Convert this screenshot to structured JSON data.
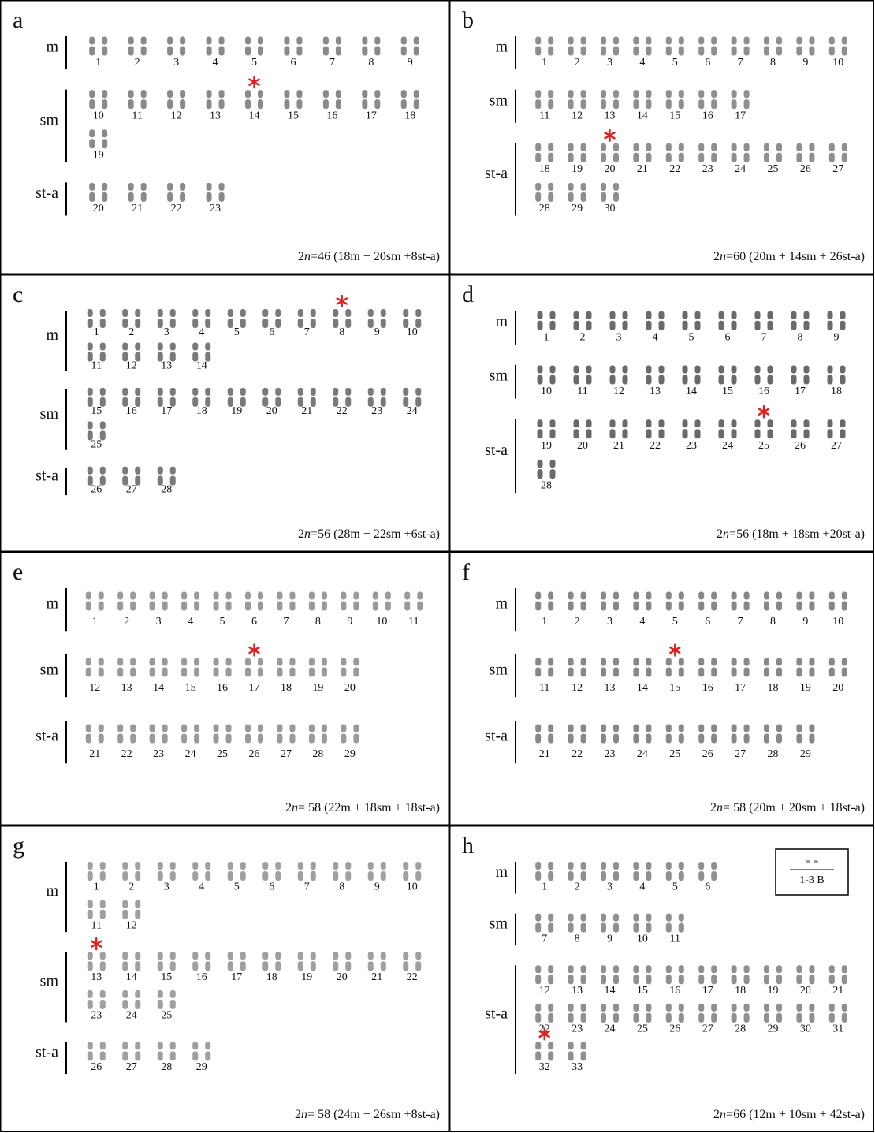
{
  "panels": [
    {
      "letter": "a",
      "groups": [
        {
          "label": "m",
          "lines": [
            [
              1,
              2,
              3,
              4,
              5,
              6,
              7,
              8,
              9
            ]
          ]
        },
        {
          "label": "sm",
          "lines": [
            [
              10,
              11,
              12,
              13,
              14,
              15,
              16,
              17,
              18
            ],
            [
              19
            ]
          ]
        },
        {
          "label": "st-a",
          "lines": [
            [
              20,
              21,
              22,
              23
            ]
          ]
        }
      ],
      "formula": {
        "prefix": "2",
        "italic": "n",
        "rest": "=46  (18m + 20sm +8st-a)"
      }
    },
    {
      "letter": "b",
      "groups": [
        {
          "label": "m",
          "lines": [
            [
              1,
              2,
              3,
              4,
              5,
              6,
              7,
              8,
              9,
              10
            ]
          ]
        },
        {
          "label": "sm",
          "lines": [
            [
              11,
              12,
              13,
              14,
              15,
              16,
              17
            ]
          ]
        },
        {
          "label": "st-a",
          "lines": [
            [
              18,
              19,
              20,
              21,
              22,
              23,
              24,
              25,
              26,
              27
            ],
            [
              28,
              29,
              30
            ]
          ]
        }
      ],
      "formula": {
        "prefix": "2",
        "italic": "n",
        "rest": "=60 (20m + 14sm + 26st-a)"
      }
    },
    {
      "letter": "c",
      "groups": [
        {
          "label": "m",
          "lines": [
            [
              1,
              2,
              3,
              4,
              5,
              6,
              7,
              8,
              9,
              10
            ],
            [
              11,
              12,
              13,
              14
            ]
          ]
        },
        {
          "label": "sm",
          "lines": [
            [
              15,
              16,
              17,
              18,
              19,
              20,
              21,
              22,
              23,
              24
            ],
            [
              25
            ]
          ]
        },
        {
          "label": "st-a",
          "lines": [
            [
              26,
              27,
              28
            ]
          ]
        }
      ],
      "formula": {
        "prefix": "2",
        "italic": "n",
        "rest": "=56  (28m + 22sm +6st-a)"
      }
    },
    {
      "letter": "d",
      "groups": [
        {
          "label": "m",
          "lines": [
            [
              1,
              2,
              3,
              4,
              5,
              6,
              7,
              8,
              9
            ]
          ]
        },
        {
          "label": "sm",
          "lines": [
            [
              10,
              11,
              12,
              13,
              14,
              15,
              16,
              17,
              18
            ]
          ]
        },
        {
          "label": "st-a",
          "lines": [
            [
              19,
              20,
              21,
              22,
              23,
              24,
              25,
              26,
              27
            ],
            [
              28
            ]
          ]
        }
      ],
      "formula": {
        "prefix": "2",
        "italic": "n",
        "rest": "=56 (18m + 18sm +20st-a)"
      }
    },
    {
      "letter": "e",
      "groups": [
        {
          "label": "m",
          "lines": [
            [
              1,
              2,
              3,
              4,
              5,
              6,
              7,
              8,
              9,
              10,
              11
            ]
          ]
        },
        {
          "label": "sm",
          "lines": [
            [
              12,
              13,
              14,
              15,
              16,
              17,
              18,
              19,
              20
            ]
          ]
        },
        {
          "label": "st-a",
          "lines": [
            [
              21,
              22,
              23,
              24,
              25,
              26,
              27,
              28,
              29
            ]
          ]
        }
      ],
      "formula": {
        "prefix": "2",
        "italic": "n",
        "rest": "= 58 (22m + 18sm + 18st-a)"
      }
    },
    {
      "letter": "f",
      "groups": [
        {
          "label": "m",
          "lines": [
            [
              1,
              2,
              3,
              4,
              5,
              6,
              7,
              8,
              9,
              10
            ]
          ]
        },
        {
          "label": "sm",
          "lines": [
            [
              11,
              12,
              13,
              14,
              15,
              16,
              17,
              18,
              19,
              20
            ]
          ]
        },
        {
          "label": "st-a",
          "lines": [
            [
              21,
              22,
              23,
              24,
              25,
              26,
              27,
              28,
              29
            ]
          ]
        }
      ],
      "formula": {
        "prefix": "2",
        "italic": "n",
        "rest": "= 58 (20m + 20sm + 18st-a)"
      }
    },
    {
      "letter": "g",
      "groups": [
        {
          "label": "m",
          "lines": [
            [
              1,
              2,
              3,
              4,
              5,
              6,
              7,
              8,
              9,
              10
            ],
            [
              11,
              12
            ]
          ]
        },
        {
          "label": "sm",
          "lines": [
            [
              13,
              14,
              15,
              16,
              17,
              18,
              19,
              20,
              21,
              22
            ],
            [
              23,
              24,
              25
            ]
          ]
        },
        {
          "label": "st-a",
          "lines": [
            [
              26,
              27,
              28,
              29
            ]
          ]
        }
      ],
      "formula": {
        "prefix": "2",
        "italic": "n",
        "rest": "= 58 (24m + 26sm +8st-a)"
      }
    },
    {
      "letter": "h",
      "groups": [
        {
          "label": "m",
          "lines": [
            [
              1,
              2,
              3,
              4,
              5,
              6
            ]
          ]
        },
        {
          "label": "sm",
          "lines": [
            [
              7,
              8,
              9,
              10,
              11
            ]
          ]
        },
        {
          "label": "st-a",
          "lines": [
            [
              12,
              13,
              14,
              15,
              16,
              17,
              18,
              19,
              20,
              21
            ],
            [
              22,
              23,
              24,
              25,
              26,
              27,
              28,
              29,
              30,
              31
            ],
            [
              32,
              33
            ]
          ]
        }
      ],
      "formula": {
        "prefix": "2",
        "italic": "n",
        "rest": "=66 (12m + 10sm + 42st-a)"
      },
      "inset_label": "1-3 B"
    }
  ]
}
